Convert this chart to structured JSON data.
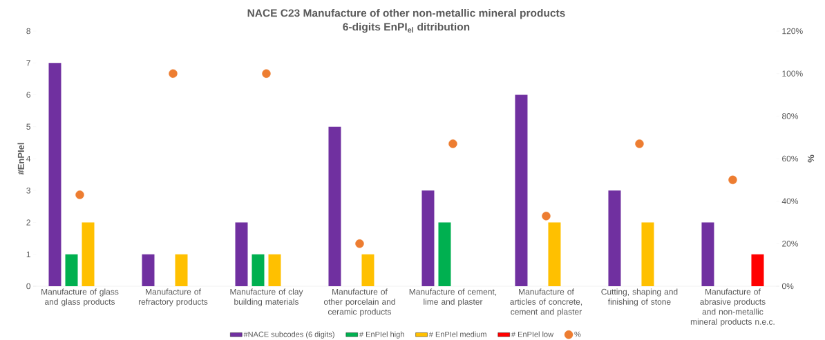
{
  "chart_data": {
    "type": "bar",
    "title": "NACE C23 Manufacture of other non-metallic mineral products",
    "subtitle": "6-digits EnPI$_{el}$ ditribution",
    "ylabel": "#EnPIel",
    "y2label": "%",
    "categories": [
      "Manufacture of glass and glass products",
      "Manufacture of refractory products",
      "Manufacture of clay building materials",
      "Manufacture of other porcelain and ceramic products",
      "Manufacture of cement, lime and plaster",
      "Manufacture of articles of concrete, cement and plaster",
      "Cutting, shaping and finishing of stone",
      "Manufacture of abrasive products and non-metallic mineral products n.e.c."
    ],
    "series": [
      {
        "name": "#NACE subcodes (6 digits)",
        "color": "#7030a0",
        "values": [
          7,
          1,
          2,
          5,
          3,
          6,
          3,
          2
        ]
      },
      {
        "name": "# EnPIel  high",
        "color": "#00b050",
        "values": [
          1,
          null,
          1,
          null,
          2,
          null,
          null,
          null
        ]
      },
      {
        "name": "# EnPIel medium",
        "color": "#ffc000",
        "values": [
          2,
          1,
          1,
          1,
          null,
          2,
          2,
          null
        ]
      },
      {
        "name": "# EnPIel low",
        "color": "#ff0000",
        "values": [
          null,
          null,
          null,
          null,
          null,
          null,
          null,
          1
        ]
      },
      {
        "name": "%",
        "type": "scatter",
        "axis": "y2",
        "color": "#ed7d31",
        "values": [
          43,
          100,
          100,
          20,
          67,
          33,
          67,
          50
        ]
      }
    ],
    "marker": "circle",
    "ylim": [
      0,
      8
    ],
    "yticks": [
      0,
      1,
      2,
      3,
      4,
      5,
      6,
      7,
      8
    ],
    "y2lim": [
      0,
      120
    ],
    "y2ticks": [
      {
        "value": 0,
        "label": "0%"
      },
      {
        "value": 20,
        "label": "20%"
      },
      {
        "value": 40,
        "label": "40%"
      },
      {
        "value": 60,
        "label": "60%"
      },
      {
        "value": 80,
        "label": "80%"
      },
      {
        "value": 100,
        "label": "100%"
      },
      {
        "value": 120,
        "label": "120%"
      }
    ],
    "legend": "bottom"
  }
}
